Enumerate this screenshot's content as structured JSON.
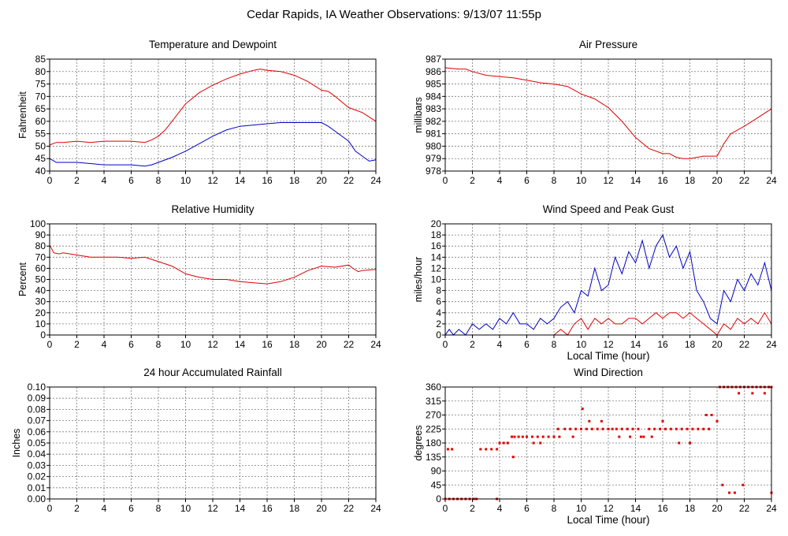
{
  "page_title": "Cedar Rapids, IA Weather Observations: 9/13/07 11:55p",
  "colors": {
    "red_series": "#e00000",
    "blue_series": "#0000c8",
    "grid": "#7a7a7a",
    "frame": "#000000",
    "background": "#ffffff"
  },
  "chart_data": [
    {
      "id": "temperature",
      "type": "line",
      "title": "Temperature and Dewpoint",
      "xlabel": "",
      "ylabel": "Fahrenheit",
      "xlim": [
        0,
        24
      ],
      "ylim": [
        40,
        85
      ],
      "xticks": [
        "0",
        "2",
        "4",
        "6",
        "8",
        "10",
        "12",
        "14",
        "16",
        "18",
        "20",
        "22",
        "24"
      ],
      "yticks": [
        "40",
        "45",
        "50",
        "55",
        "60",
        "65",
        "70",
        "75",
        "80",
        "85"
      ],
      "grid": true,
      "series": [
        {
          "color": "#e00000",
          "x": [
            0,
            0.5,
            1,
            2,
            3,
            4,
            5,
            6,
            7,
            7.5,
            8,
            8.5,
            9,
            9.5,
            10,
            11,
            12,
            13,
            14,
            15,
            15.5,
            16,
            17,
            18,
            19,
            20,
            20.5,
            21,
            22,
            23,
            24
          ],
          "y": [
            50.5,
            51.5,
            51.5,
            52,
            51.5,
            52,
            52,
            52,
            51.5,
            52.5,
            54,
            56.5,
            60,
            63.5,
            67,
            71.5,
            74.5,
            77,
            79,
            80.5,
            81,
            80.5,
            80,
            78.5,
            76,
            72.5,
            72,
            70,
            65.5,
            63.5,
            60
          ]
        },
        {
          "color": "#0000c8",
          "x": [
            0,
            0.5,
            1,
            2,
            3,
            4,
            5,
            6,
            7,
            7.5,
            8,
            9,
            10,
            11,
            12,
            13,
            14,
            15,
            16,
            17,
            18,
            19,
            20,
            20.5,
            21,
            22,
            22.5,
            23,
            23.5,
            24
          ],
          "y": [
            45,
            43.5,
            43.5,
            43.5,
            43,
            42.5,
            42.5,
            42.5,
            42,
            42.5,
            43.5,
            45.5,
            48,
            51,
            54,
            56.5,
            58,
            58.5,
            59,
            59.5,
            59.5,
            59.5,
            59.5,
            58,
            56,
            52,
            48,
            46,
            44,
            44.5
          ]
        }
      ]
    },
    {
      "id": "pressure",
      "type": "line",
      "title": "Air Pressure",
      "xlabel": "",
      "ylabel": "millibars",
      "xlim": [
        0,
        24
      ],
      "ylim": [
        978,
        987
      ],
      "xticks": [
        "0",
        "2",
        "4",
        "6",
        "8",
        "10",
        "12",
        "14",
        "16",
        "18",
        "20",
        "22",
        "24"
      ],
      "yticks": [
        "978",
        "979",
        "980",
        "981",
        "982",
        "983",
        "984",
        "985",
        "986",
        "987"
      ],
      "grid": true,
      "series": [
        {
          "color": "#e00000",
          "x": [
            0,
            1,
            1.5,
            2,
            3,
            4,
            5,
            6,
            7,
            8,
            9,
            10,
            11,
            12,
            13,
            14,
            15,
            16,
            16.5,
            17,
            17.5,
            18,
            19,
            20,
            20.5,
            21,
            22,
            23,
            24
          ],
          "y": [
            986.3,
            986.2,
            986.2,
            986.0,
            985.7,
            985.6,
            985.5,
            985.3,
            985.1,
            985.0,
            984.8,
            984.2,
            983.8,
            983.1,
            982.0,
            980.7,
            979.8,
            979.4,
            979.4,
            979.1,
            979.0,
            979.0,
            979.2,
            979.2,
            980.2,
            981.0,
            981.6,
            982.3,
            983.0
          ]
        }
      ]
    },
    {
      "id": "humidity",
      "type": "line",
      "title": "Relative Humidity",
      "xlabel": "",
      "ylabel": "Percent",
      "xlim": [
        0,
        24
      ],
      "ylim": [
        0,
        100
      ],
      "xticks": [
        "0",
        "2",
        "4",
        "6",
        "8",
        "10",
        "12",
        "14",
        "16",
        "18",
        "20",
        "22",
        "24"
      ],
      "yticks": [
        "0",
        "10",
        "20",
        "30",
        "40",
        "50",
        "60",
        "70",
        "80",
        "90",
        "100"
      ],
      "grid": true,
      "series": [
        {
          "color": "#e00000",
          "x": [
            0,
            0.3,
            0.7,
            1,
            2,
            3,
            4,
            5,
            6,
            7,
            8,
            9,
            10,
            11,
            12,
            13,
            14,
            15,
            16,
            17,
            18,
            19,
            20,
            21,
            22,
            22.3,
            22.7,
            23,
            24
          ],
          "y": [
            81,
            74,
            73,
            74,
            72,
            70,
            70,
            70,
            69,
            70,
            66,
            62,
            55,
            52,
            50,
            50,
            48,
            47,
            46,
            48,
            52,
            58,
            62,
            61,
            63,
            60,
            57,
            58,
            59
          ]
        }
      ]
    },
    {
      "id": "wind-speed",
      "type": "line",
      "title": "Wind Speed and Peak Gust",
      "xlabel": "Local Time (hour)",
      "ylabel": "miles/hour",
      "xlim": [
        0,
        24
      ],
      "ylim": [
        0,
        20
      ],
      "xticks": [
        "0",
        "2",
        "4",
        "6",
        "8",
        "10",
        "12",
        "14",
        "16",
        "18",
        "20",
        "22",
        "24"
      ],
      "yticks": [
        "0",
        "2",
        "4",
        "6",
        "8",
        "10",
        "12",
        "14",
        "16",
        "18",
        "20"
      ],
      "grid": true,
      "series": [
        {
          "color": "#0000c8",
          "x": [
            0,
            0.3,
            0.6,
            1,
            1.5,
            2,
            2.5,
            3,
            3.5,
            4,
            4.5,
            5,
            5.5,
            6,
            6.5,
            7,
            7.5,
            8,
            8.5,
            9,
            9.5,
            10,
            10.5,
            11,
            11.5,
            12,
            12.5,
            13,
            13.5,
            14,
            14.5,
            15,
            15.5,
            16,
            16.5,
            17,
            17.5,
            18,
            18.5,
            19,
            19.5,
            20,
            20.5,
            21,
            21.5,
            22,
            22.5,
            23,
            23.5,
            24
          ],
          "y": [
            0,
            1,
            0,
            1,
            0,
            2,
            1,
            2,
            1,
            3,
            2,
            4,
            2,
            2,
            1,
            3,
            2,
            3,
            5,
            6,
            4,
            8,
            7,
            12,
            8,
            9,
            14,
            11,
            15,
            13,
            17,
            12,
            16,
            18,
            14,
            16,
            12,
            15,
            8,
            6,
            3,
            2,
            8,
            6,
            10,
            8,
            11,
            9,
            13,
            8
          ]
        },
        {
          "color": "#e00000",
          "x": [
            0,
            1,
            2,
            3,
            4,
            5,
            6,
            7,
            8,
            8.5,
            9,
            9.5,
            10,
            10.5,
            11,
            11.5,
            12,
            12.5,
            13,
            13.5,
            14,
            14.5,
            15,
            15.5,
            16,
            16.5,
            17,
            17.5,
            18,
            18.5,
            19,
            19.5,
            20,
            20.5,
            21,
            21.5,
            22,
            22.5,
            23,
            23.5,
            24
          ],
          "y": [
            0,
            0,
            0,
            0,
            0,
            0,
            0,
            0,
            0,
            1,
            0,
            2,
            3,
            1,
            3,
            2,
            3,
            2,
            2,
            3,
            3,
            2,
            3,
            4,
            3,
            4,
            4,
            3,
            4,
            3,
            2,
            1,
            0,
            2,
            1,
            3,
            2,
            3,
            2,
            4,
            2
          ]
        }
      ]
    },
    {
      "id": "rainfall",
      "type": "line",
      "title": "24 hour Accumulated Rainfall",
      "xlabel": "",
      "ylabel": "Inches",
      "xlim": [
        0,
        24
      ],
      "ylim": [
        0,
        0.1
      ],
      "xticks": [
        "0",
        "2",
        "4",
        "6",
        "8",
        "10",
        "12",
        "14",
        "16",
        "18",
        "20",
        "22",
        "24"
      ],
      "yticks": [
        "0.00",
        "0.01",
        "0.02",
        "0.03",
        "0.04",
        "0.05",
        "0.06",
        "0.07",
        "0.08",
        "0.09",
        "0.10"
      ],
      "grid": true,
      "series": [
        {
          "color": "#e00000",
          "x": [
            0,
            24
          ],
          "y": [
            0,
            0
          ]
        }
      ]
    },
    {
      "id": "wind-direction",
      "type": "scatter",
      "title": "Wind Direction",
      "xlabel": "Local Time (hour)",
      "ylabel": "degrees",
      "xlim": [
        0,
        24
      ],
      "ylim": [
        0,
        360
      ],
      "xticks": [
        "0",
        "2",
        "4",
        "6",
        "8",
        "10",
        "12",
        "14",
        "16",
        "18",
        "20",
        "22",
        "24"
      ],
      "yticks": [
        "0",
        "45",
        "90",
        "135",
        "180",
        "225",
        "270",
        "315",
        "360"
      ],
      "grid": true,
      "series": [
        {
          "color": "#e00000",
          "x": [
            0,
            0.3,
            0.6,
            0.9,
            1.2,
            1.5,
            1.8,
            2.1,
            2.3,
            0.2,
            0.5,
            2.6,
            3.0,
            3.4,
            3.8,
            4.0,
            4.3,
            4.6,
            4.9,
            5.1,
            5.4,
            5.7,
            5.0,
            3.8,
            6.0,
            6.4,
            6.8,
            7.2,
            7.6,
            8.0,
            8.4,
            6.5,
            7.0,
            8.3,
            8.8,
            9.2,
            9.6,
            10.0,
            10.4,
            10.8,
            11.2,
            11.6,
            12.0,
            9.4,
            10.1,
            10.6,
            11.5,
            12.3,
            12.6,
            13.0,
            13.4,
            13.8,
            14.2,
            14.6,
            15.0,
            15.4,
            15.8,
            16.2,
            12.8,
            13.6,
            14.4,
            15.2,
            16.0,
            16.6,
            17.0,
            17.4,
            17.8,
            18.2,
            18.6,
            19.0,
            19.4,
            17.2,
            18.0,
            19.2,
            19.6,
            20.0,
            20.2,
            20.5,
            20.8,
            21.1,
            21.4,
            21.7,
            22.0,
            22.3,
            22.6,
            22.9,
            23.2,
            23.5,
            23.8,
            24.0,
            21.6,
            22.6,
            23.5,
            20.4,
            20.9,
            21.3,
            21.9,
            24.0
          ],
          "y": [
            0,
            0,
            0,
            0,
            0,
            0,
            0,
            0,
            0,
            160,
            160,
            160,
            160,
            160,
            160,
            180,
            180,
            180,
            200,
            200,
            200,
            200,
            135,
            0,
            200,
            200,
            200,
            200,
            200,
            200,
            200,
            180,
            180,
            225,
            225,
            225,
            225,
            225,
            225,
            225,
            225,
            225,
            225,
            200,
            290,
            250,
            250,
            225,
            225,
            225,
            225,
            225,
            225,
            200,
            225,
            225,
            225,
            225,
            200,
            200,
            200,
            200,
            250,
            225,
            225,
            225,
            225,
            225,
            225,
            225,
            225,
            180,
            180,
            270,
            270,
            250,
            360,
            360,
            360,
            360,
            360,
            360,
            360,
            360,
            360,
            360,
            360,
            360,
            360,
            360,
            340,
            340,
            340,
            45,
            20,
            20,
            45,
            20
          ]
        }
      ]
    }
  ]
}
